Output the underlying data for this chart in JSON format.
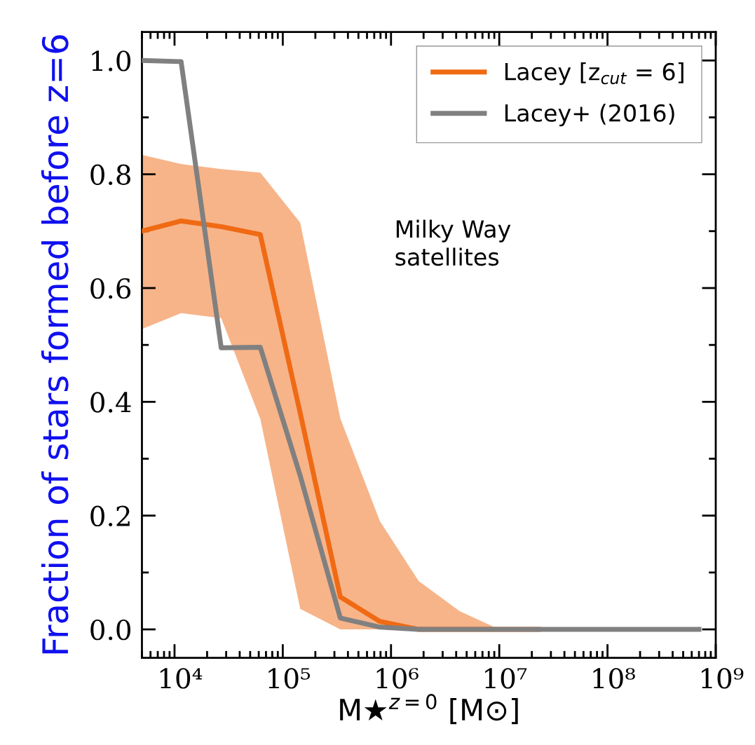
{
  "chart_data": {
    "type": "line",
    "ylabel": "Fraction of stars formed before z=6",
    "xlabel": "M★$^{z=0}$ [M⊙]",
    "x": [
      5000,
      11500,
      27000,
      62000,
      145000,
      340000,
      790000,
      1800000,
      4300000,
      10000000,
      23000000,
      55000000,
      126000000,
      300000000,
      700000000
    ],
    "series": [
      {
        "name": "Lacey [z$_{cut}$ = 6]",
        "color": "#f06a14",
        "values": [
          0.7,
          0.718,
          0.708,
          0.694,
          0.38,
          0.057,
          0.014,
          0.0,
          0.0,
          0.0,
          0.0,
          null,
          null,
          null,
          null
        ],
        "lower": [
          0.528,
          0.556,
          0.547,
          0.37,
          0.036,
          0.0,
          0.0,
          0.0,
          0.0,
          0.0,
          0.0,
          0.0,
          0.0,
          0.0,
          0.0
        ],
        "upper": [
          0.834,
          0.818,
          0.809,
          0.803,
          0.715,
          0.371,
          0.19,
          0.085,
          0.032,
          0.0,
          0.0,
          0.0,
          0.0,
          0.0,
          0.0
        ]
      },
      {
        "name": "Lacey+ (2016)",
        "color": "#808080",
        "values": [
          1.0,
          0.998,
          0.495,
          0.496,
          0.27,
          0.02,
          0.004,
          0.0,
          0.0,
          0.0,
          0.0,
          0.0,
          0.0,
          0.0,
          0.0
        ]
      }
    ],
    "annotations": [
      "Milky Way\nsatellites"
    ],
    "log": "x",
    "xlim": [
      5000,
      1000000000
    ],
    "xticks": [
      {
        "value": 10000,
        "label": "10⁴"
      },
      {
        "value": 100000,
        "label": "10⁵"
      },
      {
        "value": 1000000,
        "label": "10⁶"
      },
      {
        "value": 10000000,
        "label": "10⁷"
      },
      {
        "value": 100000000,
        "label": "10⁸"
      },
      {
        "value": 1000000000,
        "label": "10⁹"
      }
    ],
    "ylim": [
      -0.05,
      1.05
    ],
    "yticks": [
      {
        "value": 0,
        "label": "0.0"
      },
      {
        "value": 0.2,
        "label": "0.2"
      },
      {
        "value": 0.4,
        "label": "0.4"
      },
      {
        "value": 0.6,
        "label": "0.6"
      },
      {
        "value": 0.8,
        "label": "0.8"
      },
      {
        "value": 1.0,
        "label": "1.0"
      }
    ],
    "legend": "top right",
    "grid": false,
    "marker": "none",
    "line_style": "solid"
  }
}
